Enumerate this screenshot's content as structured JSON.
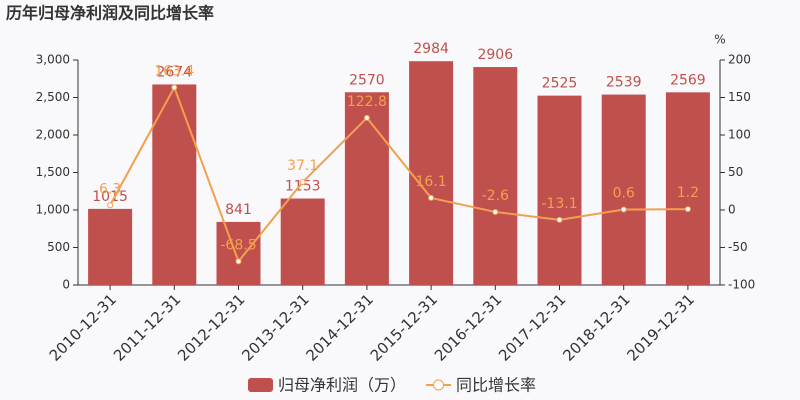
{
  "chart_data": {
    "type": "bar-line",
    "title": "历年归母净利润及同比增长率",
    "categories": [
      "2010-12-31",
      "2011-12-31",
      "2012-12-31",
      "2013-12-31",
      "2014-12-31",
      "2015-12-31",
      "2016-12-31",
      "2017-12-31",
      "2018-12-31",
      "2019-12-31"
    ],
    "series": [
      {
        "name": "归母净利润（万）",
        "type": "bar",
        "color": "#c0504d",
        "values": [
          1015,
          2674,
          841,
          1153,
          2570,
          2984,
          2906,
          2525,
          2539,
          2569
        ]
      },
      {
        "name": "同比增长率",
        "type": "line",
        "axis": "y2",
        "color": "#f3a04e",
        "values": [
          6.3,
          163.4,
          -68.5,
          37.1,
          122.8,
          16.1,
          -2.6,
          -13.1,
          0.6,
          1.2
        ]
      }
    ],
    "ylim": [
      0,
      3000
    ],
    "yticks": [
      0,
      500,
      {
        "value": 1000,
        "label": "1,000"
      },
      {
        "value": 1500,
        "label": "1,500"
      },
      {
        "value": 2000,
        "label": "2,000"
      },
      {
        "value": 2500,
        "label": "2,500"
      },
      {
        "value": 3000,
        "label": "3,000"
      }
    ],
    "y2lim": [
      -100,
      200
    ],
    "y2ticks": [
      -100,
      -50,
      0,
      50,
      100,
      150,
      200
    ],
    "y2label": "%",
    "grid": false
  }
}
